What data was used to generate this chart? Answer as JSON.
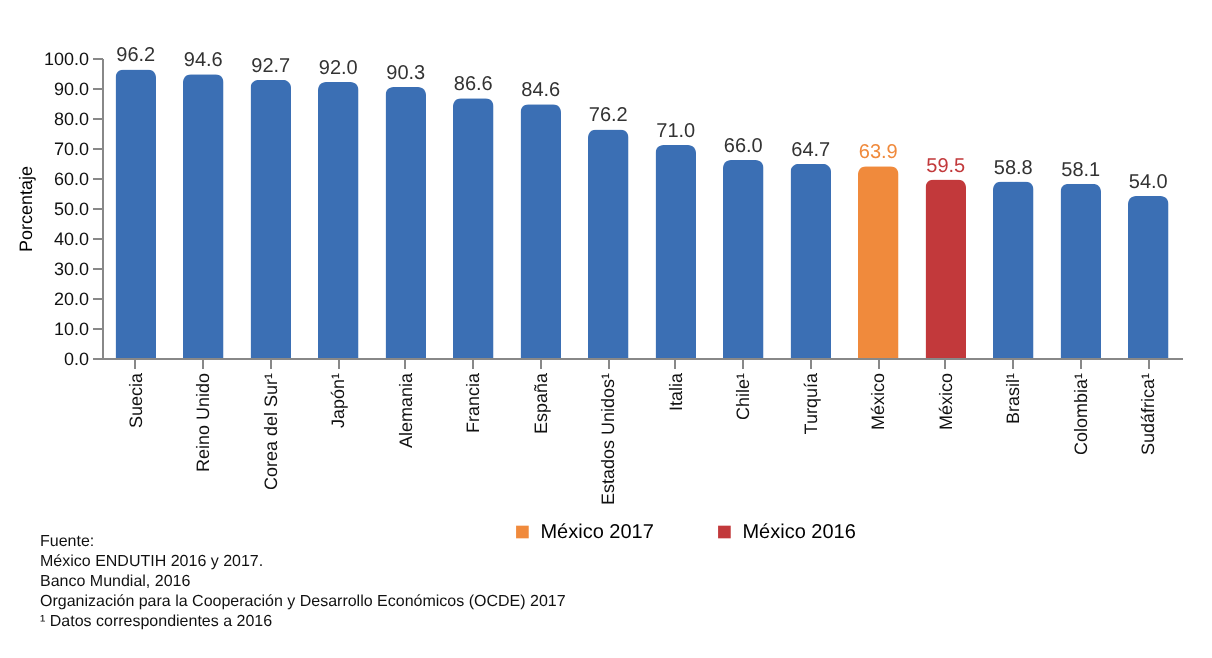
{
  "chart_data": {
    "type": "bar",
    "ylabel": "Porcentaje",
    "categories": [
      "Suecia",
      "Reino Unido",
      "Corea del Sur¹",
      "Japón¹",
      "Alemania",
      "Francia",
      "España",
      "Estados Unidos¹",
      "Italia",
      "Chile¹",
      "Turquía",
      "México",
      "México",
      "Brasil¹",
      "Colombia¹",
      "Sudáfrica¹"
    ],
    "series": [
      {
        "color": "#3b6fb4",
        "values": [
          96.2,
          94.6,
          92.7,
          92.0,
          90.3,
          86.6,
          84.6,
          76.2,
          71.0,
          66.0,
          64.7,
          null,
          null,
          58.8,
          58.1,
          54.0
        ],
        "value_labels": [
          "96.2",
          "94.6",
          "92.7",
          "92.0",
          "90.3",
          "86.6",
          "84.6",
          "76.2",
          "71.0",
          "66.0",
          "64.7",
          null,
          null,
          "58.8",
          "58.1",
          "54.0"
        ]
      },
      {
        "name": "México 2017",
        "color": "#f08a3c",
        "values": [
          null,
          null,
          null,
          null,
          null,
          null,
          null,
          null,
          null,
          null,
          null,
          63.9,
          null,
          null,
          null,
          null
        ],
        "value_labels": [
          null,
          null,
          null,
          null,
          null,
          null,
          null,
          null,
          null,
          null,
          null,
          "63.9",
          null,
          null,
          null,
          null
        ]
      },
      {
        "name": "México 2016",
        "color": "#c2393b",
        "values": [
          null,
          null,
          null,
          null,
          null,
          null,
          null,
          null,
          null,
          null,
          null,
          null,
          59.5,
          null,
          null,
          null
        ],
        "value_labels": [
          null,
          null,
          null,
          null,
          null,
          null,
          null,
          null,
          null,
          null,
          null,
          null,
          "59.5",
          null,
          null,
          null
        ]
      }
    ],
    "stacked": true,
    "ylim": [
      0,
      100
    ],
    "yticks": [
      {
        "value": 0,
        "label": "0.0"
      },
      {
        "value": 10,
        "label": "10.0"
      },
      {
        "value": 20,
        "label": "20.0"
      },
      {
        "value": 30,
        "label": "30.0"
      },
      {
        "value": 40,
        "label": "40.0"
      },
      {
        "value": 50,
        "label": "50.0"
      },
      {
        "value": 60,
        "label": "60.0"
      },
      {
        "value": 70,
        "label": "70.0"
      },
      {
        "value": 80,
        "label": "80.0"
      },
      {
        "value": 90,
        "label": "90.0"
      },
      {
        "value": 100,
        "label": "100.0"
      }
    ],
    "legend": "bottom",
    "annotations": [
      "Fuente:",
      "México ENDUTIH 2016 y 2017.",
      "Banco Mundial, 2016",
      "Organización para la Cooperación y Desarrollo Económicos (OCDE) 2017",
      "¹ Datos correspondientes a 2016"
    ]
  }
}
